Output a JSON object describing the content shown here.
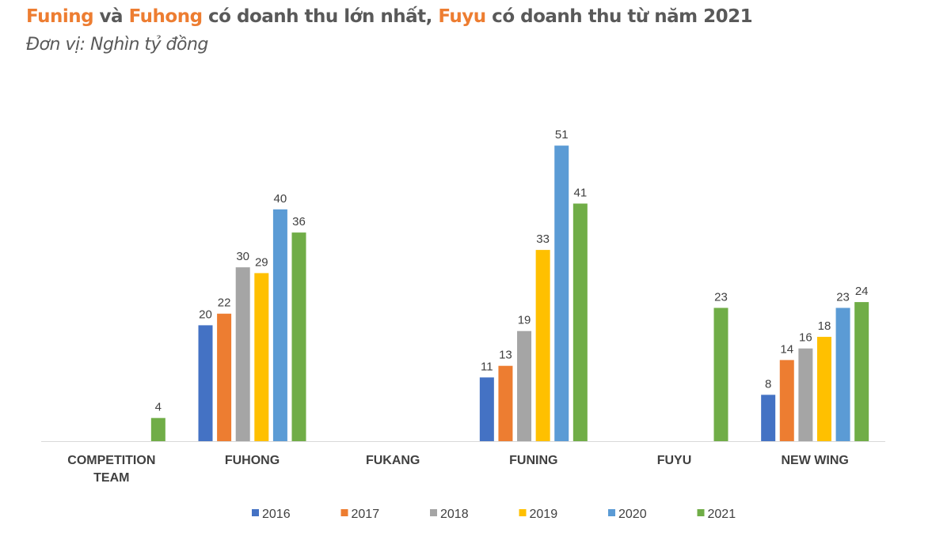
{
  "title_segments": [
    {
      "text": "Funing",
      "color": "#ED7D31"
    },
    {
      "text": " và ",
      "color": "#595959"
    },
    {
      "text": "Fuhong",
      "color": "#ED7D31"
    },
    {
      "text": " có doanh thu lớn nhất, ",
      "color": "#595959"
    },
    {
      "text": "Fuyu",
      "color": "#ED7D31"
    },
    {
      "text": " có doanh thu từ năm 2021",
      "color": "#595959"
    }
  ],
  "subtitle": "Đơn vị: Nghìn tỷ đồng",
  "chart_data": {
    "type": "bar",
    "title": "Funing và Fuhong có doanh thu lớn nhất, Fuyu có doanh thu từ năm 2021",
    "subtitle": "Đơn vị: Nghìn tỷ đồng",
    "categories": [
      [
        "COMPETITION",
        "TEAM"
      ],
      [
        "FUHONG"
      ],
      [
        "FUKANG"
      ],
      [
        "FUNING"
      ],
      [
        "FUYU"
      ],
      [
        "NEW WING"
      ]
    ],
    "series": [
      {
        "name": "2016",
        "color": "#4472C4",
        "values": [
          null,
          20,
          null,
          11,
          null,
          8
        ]
      },
      {
        "name": "2017",
        "color": "#ED7D31",
        "values": [
          null,
          22,
          null,
          13,
          null,
          14
        ]
      },
      {
        "name": "2018",
        "color": "#A5A5A5",
        "values": [
          null,
          30,
          null,
          19,
          null,
          16
        ]
      },
      {
        "name": "2019",
        "color": "#FFC000",
        "values": [
          null,
          29,
          null,
          33,
          null,
          18
        ]
      },
      {
        "name": "2020",
        "color": "#5B9BD5",
        "values": [
          null,
          40,
          null,
          51,
          null,
          23
        ]
      },
      {
        "name": "2021",
        "color": "#70AD47",
        "values": [
          4,
          36,
          null,
          41,
          23,
          24
        ]
      }
    ],
    "ylim": [
      0,
      55
    ],
    "grid": false,
    "legend": "bottom",
    "data_labels": true
  }
}
